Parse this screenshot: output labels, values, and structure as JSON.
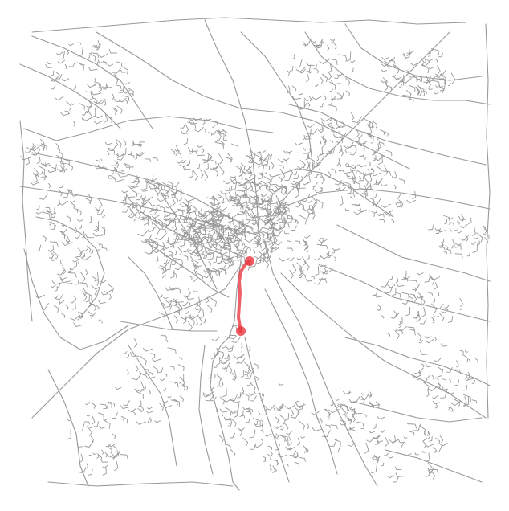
{
  "map": {
    "type": "street-network-route",
    "background_color": "#ffffff",
    "road_color": "#999999",
    "route": {
      "color": "#e8363d",
      "start_marker": "circle",
      "end_marker": "circle"
    }
  }
}
